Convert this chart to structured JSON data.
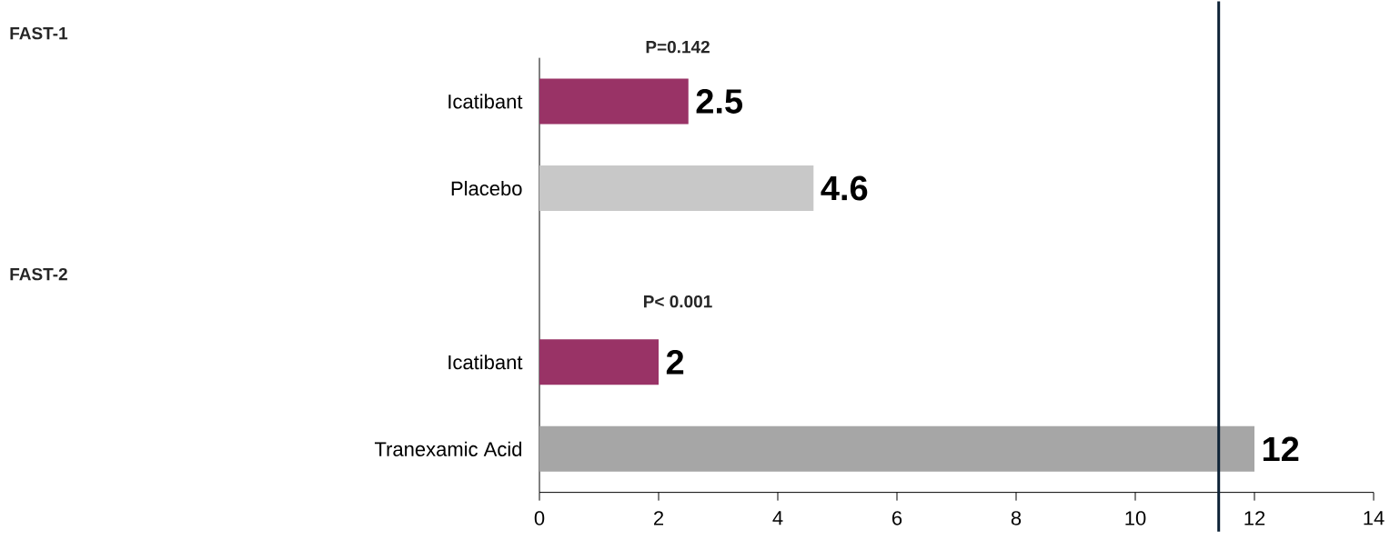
{
  "chart_data": {
    "type": "bar",
    "orientation": "horizontal",
    "categories": [
      "Icatibant",
      "Placebo",
      null,
      "Icatibant",
      "Tranexamic Acid"
    ],
    "values": [
      2.5,
      4.6,
      null,
      2,
      12
    ],
    "colors": [
      "#993366",
      "#c8c8c8",
      "#c8c8c8",
      "#993366",
      "#a6a6a6"
    ],
    "data_labels": true,
    "xlim": [
      0,
      14
    ],
    "xticks": [
      0,
      2,
      4,
      6,
      8,
      10,
      12,
      14
    ],
    "ref_lines": [
      {
        "axis": "x",
        "value": 11.4,
        "color": "#0d2236"
      }
    ],
    "annotations": [
      "FAST-1",
      "P=0.142",
      "FAST-2",
      "P< 0.001"
    ]
  }
}
